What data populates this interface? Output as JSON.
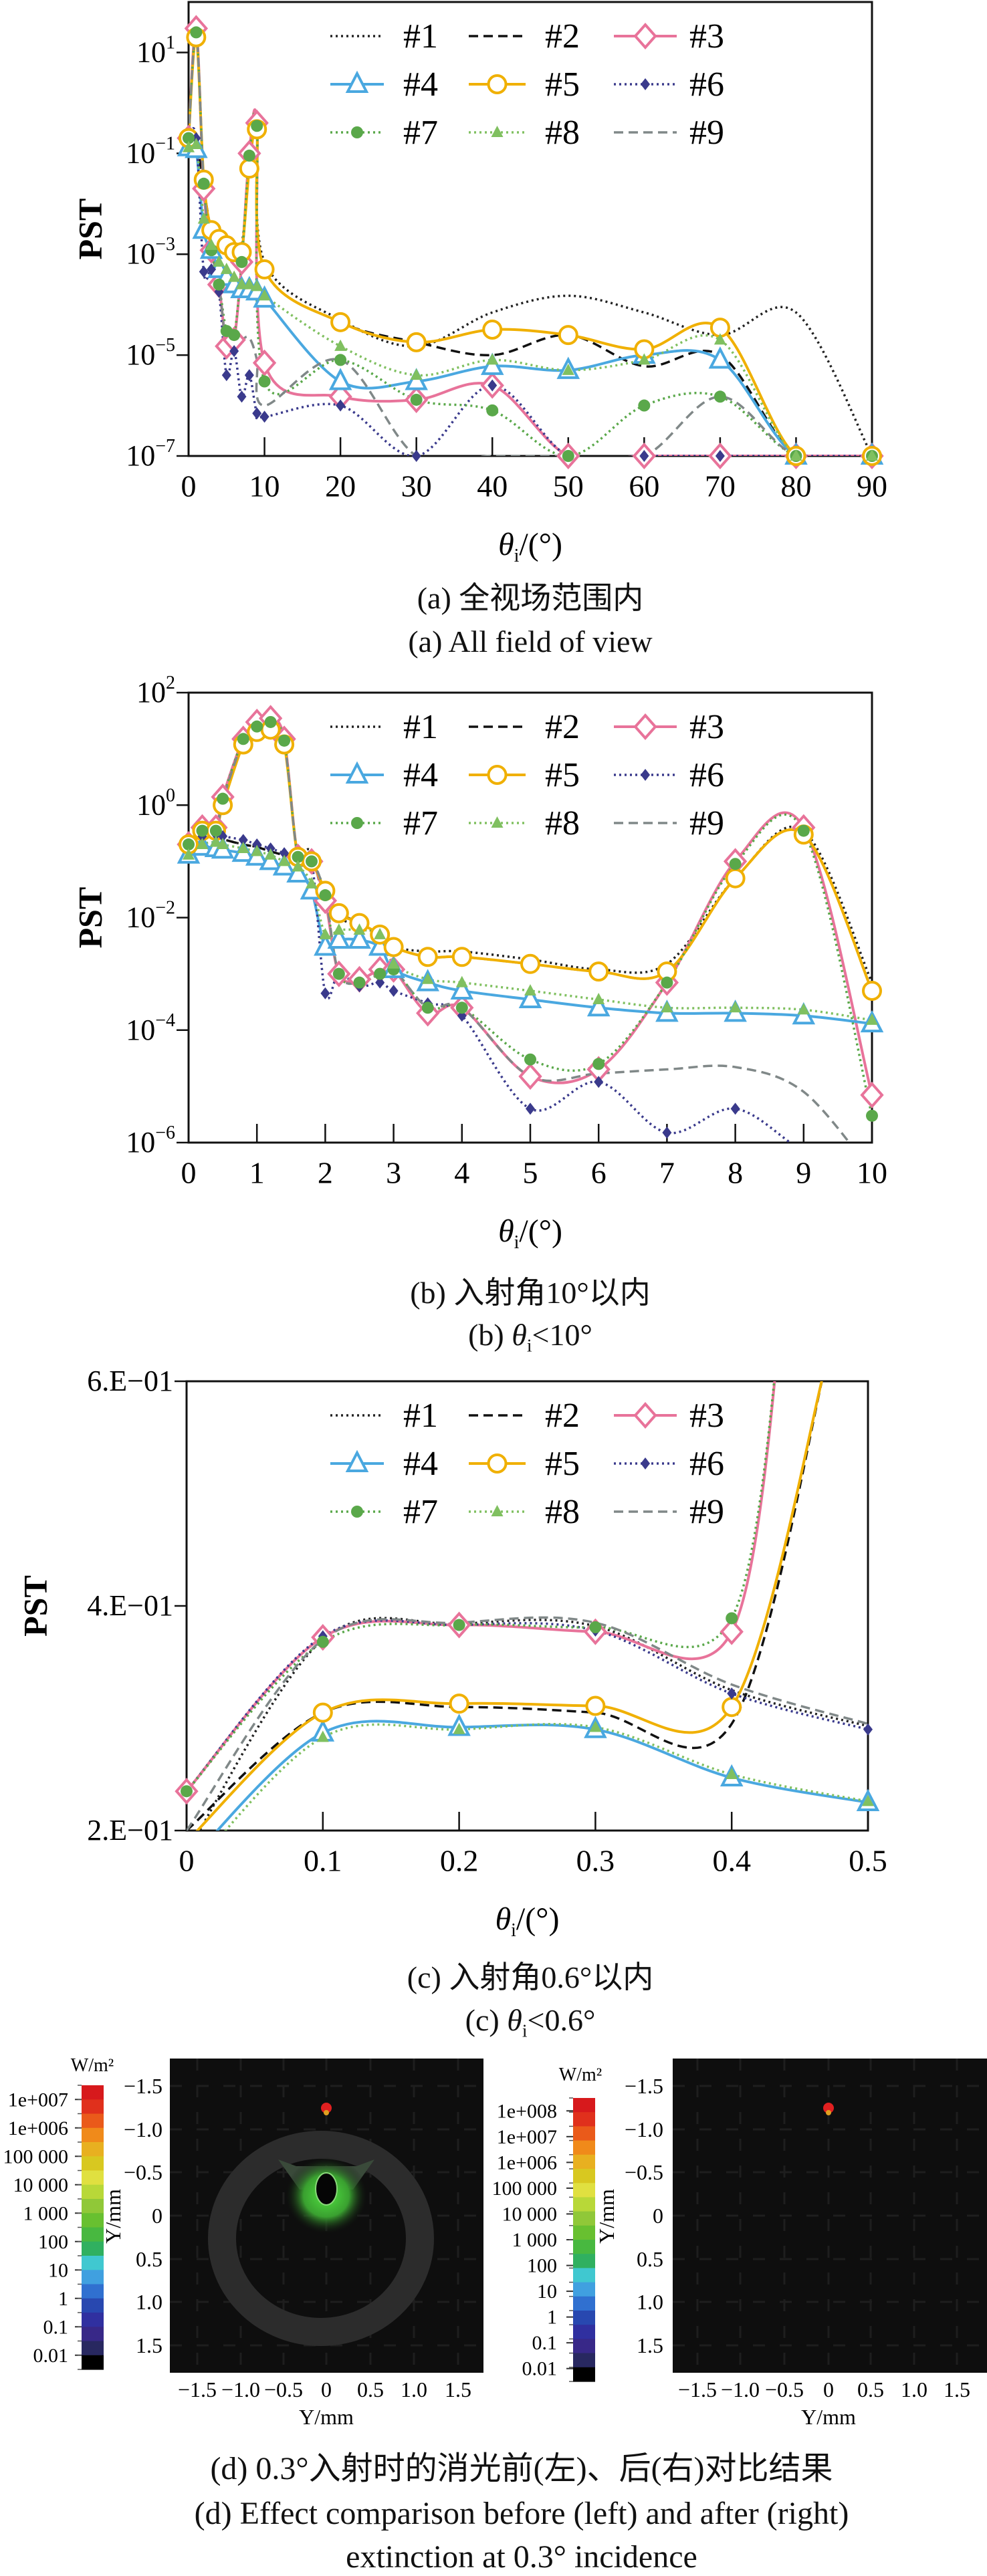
{
  "legend_labels": [
    "#1",
    "#2",
    "#3",
    "#4",
    "#5",
    "#6",
    "#7",
    "#8",
    "#9"
  ],
  "series_style": [
    {
      "name": "#1",
      "color": "#222222",
      "dash": "dotted",
      "marker": "none"
    },
    {
      "name": "#2",
      "color": "#111111",
      "dash": "dashed",
      "marker": "none"
    },
    {
      "name": "#3",
      "color": "#e8739a",
      "dash": "solid",
      "marker": "diamond-open"
    },
    {
      "name": "#4",
      "color": "#4aa8e0",
      "dash": "solid",
      "marker": "triangle-open"
    },
    {
      "name": "#5",
      "color": "#f0b000",
      "dash": "solid",
      "marker": "circle-open"
    },
    {
      "name": "#6",
      "color": "#3a3a8c",
      "dash": "dotted",
      "marker": "diamond-small"
    },
    {
      "name": "#7",
      "color": "#5aa84a",
      "dash": "dotted",
      "marker": "circle-filled"
    },
    {
      "name": "#8",
      "color": "#80c060",
      "dash": "dotted",
      "marker": "triangle-filled"
    },
    {
      "name": "#9",
      "color": "#808888",
      "dash": "dashed",
      "marker": "none"
    }
  ],
  "chart_data": [
    {
      "type": "line",
      "ylabel": "PST",
      "xlabel": {
        "symbol": "θ",
        "sub": "i",
        "rest": "/(°)"
      },
      "xlim": [
        0,
        90
      ],
      "ylim": [
        1e-07,
        100
      ],
      "yscale": "log",
      "xticks": [
        0,
        10,
        20,
        30,
        40,
        50,
        60,
        70,
        80,
        90
      ],
      "yticks": [
        10,
        0.1,
        0.001,
        1e-05,
        1e-07
      ],
      "ytick_labels": [
        "10^1",
        "10^−1",
        "10^−3",
        "10^−5",
        "10^−7"
      ],
      "legend": "top-center",
      "x": [
        0,
        1,
        2,
        3,
        4,
        5,
        6,
        7,
        8,
        9,
        10,
        20,
        30,
        40,
        50,
        60,
        70,
        80,
        90
      ],
      "series": [
        {
          "name": "#1",
          "values": [
            0.2,
            0.18,
            0.02,
            0.003,
            0.0025,
            0.0018,
            0.0012,
            0.0015,
            0.05,
            0.35,
            0.0007,
            5e-05,
            1.5e-05,
            7e-05,
            0.00015,
            7e-05,
            2.5e-05,
            7e-05,
            1e-07
          ]
        },
        {
          "name": "#2",
          "values": [
            0.2,
            0.18,
            0.02,
            0.003,
            0.002,
            0.0015,
            0.0011,
            0.0011,
            0.05,
            0.3,
            0.0005,
            4.5e-05,
            1.8e-05,
            1e-05,
            2.5e-05,
            6e-06,
            1e-05,
            1e-07,
            1e-07
          ]
        },
        {
          "name": "#3",
          "values": [
            0.2,
            30,
            0.02,
            0.0012,
            0.00025,
            1.5e-05,
            2e-05,
            0.0007,
            0.1,
            0.4,
            7e-06,
            1.5e-06,
            1.3e-06,
            2.5e-06,
            1e-07,
            1e-07,
            1e-07,
            1e-07,
            1e-07
          ]
        },
        {
          "name": "#4",
          "values": [
            0.13,
            0.12,
            0.003,
            0.0012,
            0.0005,
            0.00035,
            0.00025,
            0.0002,
            0.0002,
            0.00018,
            0.00013,
            3e-06,
            3e-06,
            6e-06,
            5e-06,
            1e-05,
            8e-06,
            1e-07,
            1e-07
          ]
        },
        {
          "name": "#5",
          "values": [
            0.2,
            20,
            0.03,
            0.003,
            0.002,
            0.0015,
            0.0011,
            0.0011,
            0.05,
            0.3,
            0.0005,
            4.5e-05,
            1.8e-05,
            3.2e-05,
            2.5e-05,
            1.3e-05,
            3.5e-05,
            1e-07,
            1e-07
          ]
        },
        {
          "name": "#6",
          "values": [
            0.2,
            0.2,
            0.00045,
            0.0005,
            0.00018,
            4e-06,
            1.2e-05,
            1.5e-06,
            4e-06,
            7e-07,
            6e-07,
            1e-06,
            1e-07,
            2.5e-06,
            1e-07,
            1e-07,
            1e-07,
            1e-07,
            1e-07
          ]
        },
        {
          "name": "#7",
          "values": [
            0.2,
            25,
            0.025,
            0.0012,
            0.00025,
            3e-05,
            2.5e-05,
            0.0007,
            0.09,
            0.35,
            3e-06,
            8e-06,
            1.3e-06,
            8e-07,
            1e-07,
            1e-06,
            1.5e-06,
            1e-07,
            1e-07
          ]
        },
        {
          "name": "#8",
          "values": [
            0.13,
            0.15,
            0.005,
            0.0015,
            0.0007,
            0.0005,
            0.00035,
            0.00025,
            0.00025,
            0.00023,
            0.00015,
            1.5e-05,
            4e-06,
            8e-06,
            5e-06,
            8e-06,
            2e-05,
            1e-07,
            1e-07
          ]
        },
        {
          "name": "#9",
          "values": [
            0.2,
            25,
            0.025,
            0.0012,
            0.00025,
            1.5e-05,
            1.7e-05,
            2e-05,
            2.2e-05,
            8e-06,
            1e-06,
            8e-06,
            1e-07,
            1e-07,
            1e-07,
            1e-07,
            1.5e-06,
            1e-07,
            1e-07
          ]
        }
      ]
    },
    {
      "type": "line",
      "ylabel": "PST",
      "xlabel": {
        "symbol": "θ",
        "sub": "i",
        "rest": "/(°)"
      },
      "xlim": [
        0,
        10
      ],
      "ylim": [
        1e-06,
        100
      ],
      "yscale": "log",
      "xticks": [
        0,
        1,
        2,
        3,
        4,
        5,
        6,
        7,
        8,
        9,
        10
      ],
      "yticks": [
        100,
        1,
        0.01,
        0.0001,
        1e-06
      ],
      "ytick_labels": [
        "10^2",
        "10^0",
        "10^−2",
        "10^−4",
        "10^−6"
      ],
      "legend": "top-center",
      "x": [
        0,
        0.2,
        0.4,
        0.5,
        0.8,
        1,
        1.2,
        1.4,
        1.6,
        1.8,
        2,
        2.2,
        2.5,
        2.8,
        3,
        3.5,
        4,
        5,
        6,
        7,
        8,
        9,
        10
      ],
      "series": [
        {
          "name": "#1",
          "values": [
            0.2,
            0.3,
            0.3,
            0.25,
            0.2,
            0.18,
            0.15,
            0.13,
            0.12,
            0.15,
            0.02,
            0.01,
            0.007,
            0.005,
            0.003,
            0.0025,
            0.0025,
            0.0018,
            0.0012,
            0.0015,
            0.05,
            0.35,
            0.0007
          ]
        },
        {
          "name": "#2",
          "values": [
            0.2,
            0.3,
            0.3,
            0.25,
            0.2,
            0.18,
            0.15,
            0.13,
            0.12,
            0.12,
            0.02,
            0.012,
            0.008,
            0.005,
            0.003,
            0.002,
            0.002,
            0.0015,
            0.0011,
            0.0011,
            0.05,
            0.3,
            0.0005
          ]
        },
        {
          "name": "#3",
          "values": [
            0.2,
            0.4,
            0.4,
            1.4,
            15,
            30,
            35,
            15,
            0.12,
            0.1,
            0.02,
            0.001,
            0.0008,
            0.0012,
            0.0012,
            0.0002,
            0.00025,
            1.5e-05,
            2e-05,
            0.0007,
            0.1,
            0.4,
            7e-06
          ]
        },
        {
          "name": "#4",
          "values": [
            0.13,
            0.18,
            0.17,
            0.16,
            0.14,
            0.12,
            0.1,
            0.08,
            0.06,
            0.03,
            0.003,
            0.004,
            0.004,
            0.003,
            0.0012,
            0.0007,
            0.0005,
            0.00035,
            0.00025,
            0.0002,
            0.0002,
            0.00018,
            0.00013
          ]
        },
        {
          "name": "#5",
          "values": [
            0.2,
            0.35,
            0.35,
            1.0,
            12,
            20,
            22,
            12,
            0.12,
            0.1,
            0.03,
            0.012,
            0.008,
            0.005,
            0.003,
            0.002,
            0.002,
            0.0015,
            0.0011,
            0.0011,
            0.05,
            0.3,
            0.0005
          ]
        },
        {
          "name": "#6",
          "values": [
            0.2,
            0.28,
            0.3,
            0.28,
            0.24,
            0.2,
            0.17,
            0.14,
            0.12,
            0.1,
            0.00045,
            0.001,
            0.0006,
            0.0007,
            0.0005,
            0.0003,
            0.00018,
            4e-06,
            1.2e-05,
            1.5e-06,
            4e-06,
            7e-07,
            2e-07
          ]
        },
        {
          "name": "#7",
          "values": [
            0.2,
            0.35,
            0.35,
            1.3,
            15,
            25,
            30,
            14,
            0.12,
            0.1,
            0.025,
            0.001,
            0.0007,
            0.001,
            0.0012,
            0.00025,
            0.00025,
            3e-05,
            2.5e-05,
            0.0007,
            0.09,
            0.35,
            3e-06
          ]
        },
        {
          "name": "#8",
          "values": [
            0.13,
            0.2,
            0.22,
            0.2,
            0.17,
            0.15,
            0.13,
            0.1,
            0.08,
            0.04,
            0.005,
            0.006,
            0.006,
            0.005,
            0.0015,
            0.0008,
            0.0007,
            0.0005,
            0.00035,
            0.00025,
            0.00025,
            0.00023,
            0.00015
          ]
        },
        {
          "name": "#9",
          "values": [
            0.2,
            0.3,
            0.3,
            1.2,
            14,
            25,
            28,
            13,
            0.12,
            0.1,
            0.025,
            0.001,
            0.0007,
            0.001,
            0.0012,
            0.00025,
            0.00025,
            1.5e-05,
            1.7e-05,
            2e-05,
            2.2e-05,
            8e-06,
            3e-07
          ]
        }
      ]
    },
    {
      "type": "line",
      "ylabel": "PST",
      "xlabel": {
        "symbol": "θ",
        "sub": "i",
        "rest": "/(°)"
      },
      "xlim": [
        0,
        0.5
      ],
      "ylim": [
        0.2,
        0.6
      ],
      "yscale": "linear",
      "xticks": [
        0,
        0.1,
        0.2,
        0.3,
        0.4,
        0.5
      ],
      "yticks": [
        0.6,
        0.4,
        0.2
      ],
      "ytick_labels": [
        "6.E−01",
        "4.E−01",
        "2.E−01"
      ],
      "legend": "top-center",
      "series": [
        {
          "name": "#1",
          "x": [
            0,
            0.1,
            0.2,
            0.3,
            0.4,
            0.5
          ],
          "values": [
            0.18,
            0.37,
            0.384,
            0.382,
            0.325,
            0.293
          ]
        },
        {
          "name": "#2",
          "x": [
            0,
            0.1,
            0.2,
            0.3,
            0.4,
            0.47
          ],
          "values": [
            0.2,
            0.305,
            0.31,
            0.305,
            0.295,
            0.62
          ]
        },
        {
          "name": "#3",
          "x": [
            0,
            0.1,
            0.2,
            0.3,
            0.4,
            0.44
          ],
          "values": [
            0.235,
            0.372,
            0.383,
            0.377,
            0.377,
            0.7
          ]
        },
        {
          "name": "#4",
          "x": [
            0,
            0.1,
            0.2,
            0.3,
            0.4,
            0.5
          ],
          "values": [
            0.17,
            0.287,
            0.292,
            0.29,
            0.247,
            0.225
          ]
        },
        {
          "name": "#5",
          "x": [
            0,
            0.1,
            0.2,
            0.3,
            0.4,
            0.47
          ],
          "values": [
            0.19,
            0.305,
            0.313,
            0.311,
            0.31,
            0.62
          ]
        },
        {
          "name": "#6",
          "x": [
            0,
            0.1,
            0.2,
            0.3,
            0.4,
            0.5
          ],
          "values": [
            0.235,
            0.373,
            0.383,
            0.378,
            0.322,
            0.29
          ]
        },
        {
          "name": "#7",
          "x": [
            0,
            0.1,
            0.2,
            0.3,
            0.4,
            0.44
          ],
          "values": [
            0.235,
            0.368,
            0.383,
            0.381,
            0.389,
            0.7
          ]
        },
        {
          "name": "#8",
          "x": [
            0,
            0.1,
            0.2,
            0.3,
            0.4,
            0.5
          ],
          "values": [
            0.16,
            0.283,
            0.29,
            0.292,
            0.25,
            0.226
          ]
        },
        {
          "name": "#9",
          "x": [
            0,
            0.1,
            0.2,
            0.3,
            0.4,
            0.5
          ],
          "values": [
            0.2,
            0.37,
            0.385,
            0.385,
            0.33,
            0.295
          ]
        }
      ]
    }
  ],
  "irradiance_maps": {
    "unit": "W/m²",
    "axis_label": "Y/mm",
    "ticks": [
      "−1.5",
      "−1.0",
      "−0.5",
      "0",
      "0.5",
      "1.0",
      "1.5"
    ],
    "colormap": [
      "#d7191c",
      "#e0301c",
      "#ea5a1a",
      "#f08a1a",
      "#e8b020",
      "#d8c820",
      "#e0e040",
      "#b8d838",
      "#90c838",
      "#68c030",
      "#48b840",
      "#30b060",
      "#40c8d0",
      "#40a0e0",
      "#3070d0",
      "#2848b0",
      "#3030a0",
      "#382888",
      "#282860",
      "#000000"
    ],
    "left": {
      "colorbar_labels": [
        "1e+007",
        "1e+006",
        "100 000",
        "10 000",
        "1 000",
        "100",
        "10",
        "1",
        "0.1",
        "0.01"
      ]
    },
    "right": {
      "colorbar_labels": [
        "1e+008",
        "1e+007",
        "1e+006",
        "100 000",
        "10 000",
        "1 000",
        "100",
        "10",
        "1",
        "0.1",
        "0.01"
      ]
    }
  },
  "captions": {
    "a_cn": "(a) 全视场范围内",
    "a_en": "(a) All field of view",
    "b_cn": "(b) 入射角10°以内",
    "b_en": {
      "prefix": "(b) ",
      "symbol": "θ",
      "sub": "i",
      "rest": "<10°"
    },
    "c_cn": "(c) 入射角0.6°以内",
    "c_en": {
      "prefix": "(c) ",
      "symbol": "θ",
      "sub": "i",
      "rest": "<0.6°"
    },
    "d_cn": "(d) 0.3°入射时的消光前(左)、后(右)对比结果",
    "d_en1": "(d) Effect comparison before (left) and after (right)",
    "d_en2": "extinction at 0.3° incidence"
  }
}
